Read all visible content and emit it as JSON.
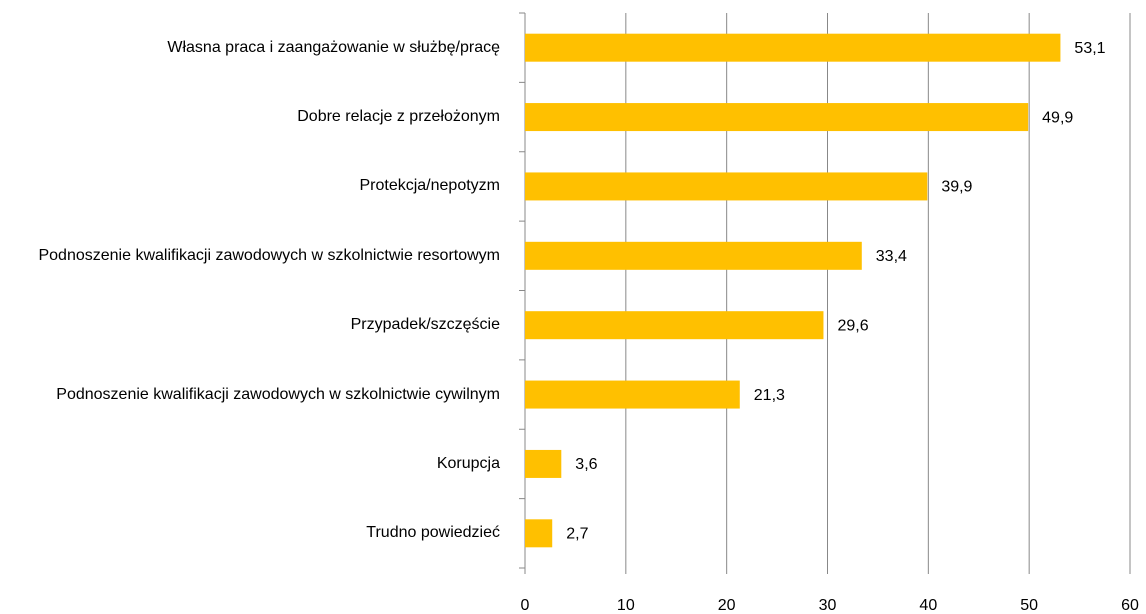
{
  "chart_data": {
    "type": "barh",
    "categories": [
      "Własna praca i zaangażowanie w służbę/pracę",
      "Dobre relacje z przełożonym",
      "Protekcja/nepotyzm",
      "Podnoszenie kwalifikacji zawodowych w szkolnictwie resortowym",
      "Przypadek/szczęście",
      "Podnoszenie kwalifikacji zawodowych w szkolnictwie cywilnym",
      "Korupcja",
      "Trudno powiedzieć"
    ],
    "values": [
      53.1,
      49.9,
      39.9,
      33.4,
      29.6,
      21.3,
      3.6,
      2.7
    ],
    "value_labels": [
      "53,1",
      "49,9",
      "39,9",
      "33,4",
      "29,6",
      "21,3",
      "3,6",
      "2,7"
    ],
    "color": "#ffc000",
    "xlim": [
      0,
      60
    ],
    "xticks": [
      0,
      10,
      20,
      30,
      40,
      50,
      60
    ],
    "grid": true
  }
}
